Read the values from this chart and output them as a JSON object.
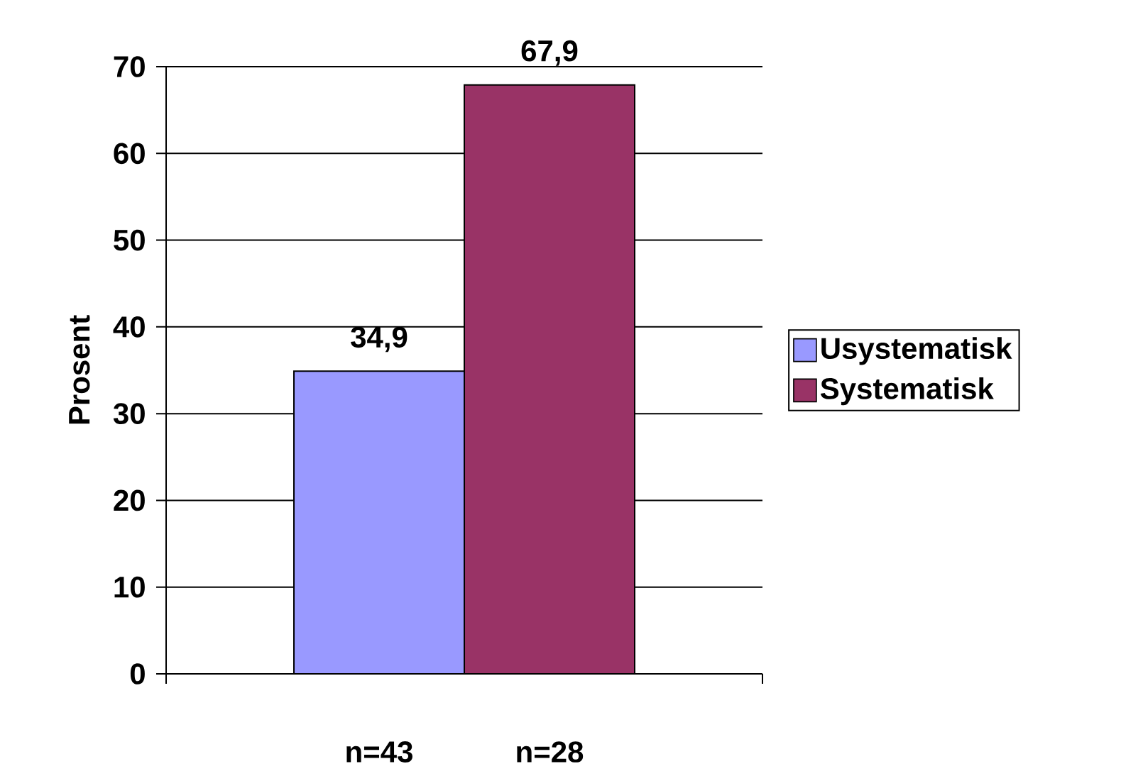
{
  "chart_data": {
    "type": "bar",
    "ylabel": "Prosent",
    "categories": [
      null
    ],
    "series": [
      {
        "name": "Usystematisk",
        "color": "#9999ff",
        "values": [
          34.9
        ],
        "value_labels": [
          "34,9"
        ]
      },
      {
        "name": "Systematisk",
        "color": "#993366",
        "values": [
          67.9
        ],
        "value_labels": [
          "67,9"
        ]
      }
    ],
    "annotations": [
      "n=43",
      "n=28"
    ],
    "ylim": [
      0,
      70
    ],
    "yticks": [
      0,
      10,
      20,
      30,
      40,
      50,
      60,
      70
    ],
    "grid": "y",
    "legend": "right"
  }
}
